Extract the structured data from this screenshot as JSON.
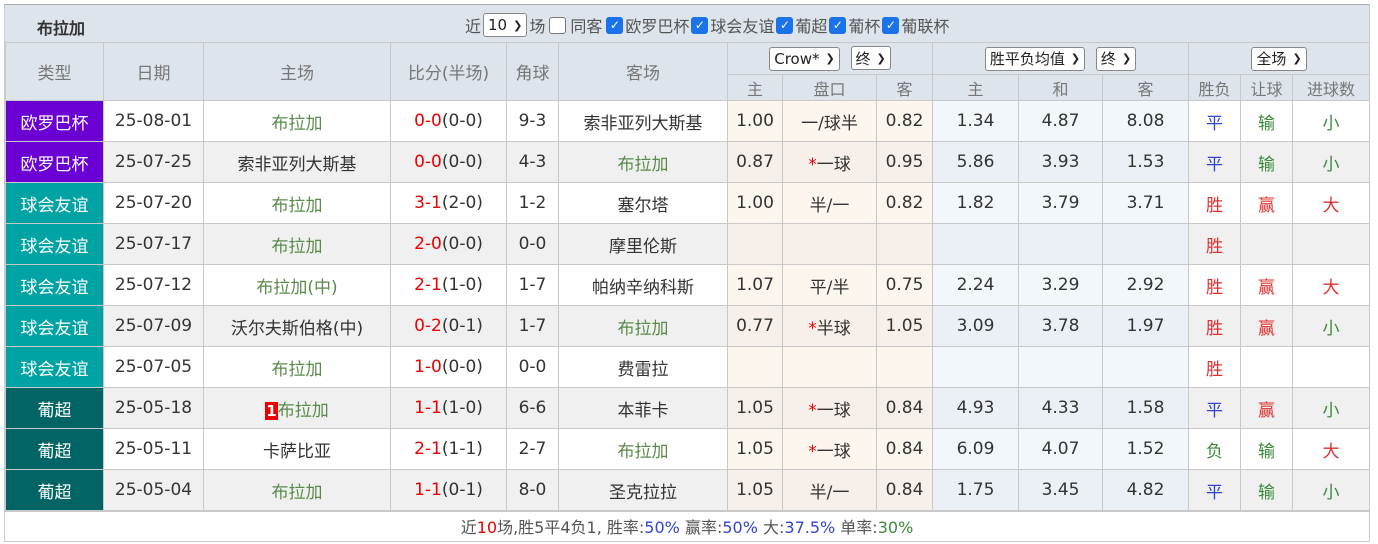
{
  "title": "布拉加",
  "filters": {
    "near_label": "近",
    "count": "10",
    "unit": "场",
    "same_guest": "同客",
    "leagues": [
      "欧罗巴杯",
      "球会友谊",
      "葡超",
      "葡杯",
      "葡联杯"
    ]
  },
  "headers": {
    "type": "类型",
    "date": "日期",
    "home": "主场",
    "score": "比分(半场)",
    "corner": "角球",
    "away": "客场",
    "company": "Crow*",
    "stage1": "终",
    "avg": "胜平负均值",
    "stage2": "终",
    "scope": "全场",
    "sub": [
      "主",
      "盘口",
      "客",
      "主",
      "和",
      "客",
      "胜负",
      "让球",
      "进球数"
    ]
  },
  "colors": {
    "欧罗巴杯": "#6a00d4",
    "球会友谊": "#00a3a3",
    "葡超": "#006464"
  },
  "rows": [
    {
      "type": "欧罗巴杯",
      "date": "25-08-01",
      "home": "布拉加",
      "home_hl": true,
      "score": "0-0",
      "half": "(0-0)",
      "corner": "9-3",
      "away": "索非亚列大斯基",
      "away_hl": false,
      "h": "1.00",
      "hc": "一/球半",
      "star": false,
      "a": "0.82",
      "o1": "1.34",
      "ox": "4.87",
      "o2": "8.08",
      "r": "平",
      "rq": "输",
      "ds": "小"
    },
    {
      "type": "欧罗巴杯",
      "date": "25-07-25",
      "home": "索非亚列大斯基",
      "home_hl": false,
      "score": "0-0",
      "half": "(0-0)",
      "corner": "4-3",
      "away": "布拉加",
      "away_hl": true,
      "h": "0.87",
      "hc": "一球",
      "star": true,
      "a": "0.95",
      "o1": "5.86",
      "ox": "3.93",
      "o2": "1.53",
      "r": "平",
      "rq": "输",
      "ds": "小"
    },
    {
      "type": "球会友谊",
      "date": "25-07-20",
      "home": "布拉加",
      "home_hl": true,
      "score": "3-1",
      "half": "(2-0)",
      "corner": "1-2",
      "away": "塞尔塔",
      "away_hl": false,
      "h": "1.00",
      "hc": "半/一",
      "star": false,
      "a": "0.82",
      "o1": "1.82",
      "ox": "3.79",
      "o2": "3.71",
      "r": "胜",
      "rq": "赢",
      "ds": "大"
    },
    {
      "type": "球会友谊",
      "date": "25-07-17",
      "home": "布拉加",
      "home_hl": true,
      "score": "2-0",
      "half": "(0-0)",
      "corner": "0-0",
      "away": "摩里伦斯",
      "away_hl": false,
      "h": "",
      "hc": "",
      "star": false,
      "a": "",
      "o1": "",
      "ox": "",
      "o2": "",
      "r": "胜",
      "rq": "",
      "ds": ""
    },
    {
      "type": "球会友谊",
      "date": "25-07-12",
      "home": "布拉加(中)",
      "home_hl": true,
      "score": "2-1",
      "half": "(1-0)",
      "corner": "1-7",
      "away": "帕纳辛纳科斯",
      "away_hl": false,
      "h": "1.07",
      "hc": "平/半",
      "star": false,
      "a": "0.75",
      "o1": "2.24",
      "ox": "3.29",
      "o2": "2.92",
      "r": "胜",
      "rq": "赢",
      "ds": "大"
    },
    {
      "type": "球会友谊",
      "date": "25-07-09",
      "home": "沃尔夫斯伯格(中)",
      "home_hl": false,
      "score": "0-2",
      "half": "(0-1)",
      "corner": "1-7",
      "away": "布拉加",
      "away_hl": true,
      "h": "0.77",
      "hc": "半球",
      "star": true,
      "a": "1.05",
      "o1": "3.09",
      "ox": "3.78",
      "o2": "1.97",
      "r": "胜",
      "rq": "赢",
      "ds": "小"
    },
    {
      "type": "球会友谊",
      "date": "25-07-05",
      "home": "布拉加",
      "home_hl": true,
      "score": "1-0",
      "half": "(0-0)",
      "corner": "0-0",
      "away": "费雷拉",
      "away_hl": false,
      "h": "",
      "hc": "",
      "star": false,
      "a": "",
      "o1": "",
      "ox": "",
      "o2": "",
      "r": "胜",
      "rq": "",
      "ds": ""
    },
    {
      "type": "葡超",
      "date": "25-05-18",
      "home": "布拉加",
      "home_hl": true,
      "badge": "1",
      "score": "1-1",
      "half": "(1-0)",
      "corner": "6-6",
      "away": "本菲卡",
      "away_hl": false,
      "h": "1.05",
      "hc": "一球",
      "star": true,
      "a": "0.84",
      "o1": "4.93",
      "ox": "4.33",
      "o2": "1.58",
      "r": "平",
      "rq": "赢",
      "ds": "小"
    },
    {
      "type": "葡超",
      "date": "25-05-11",
      "home": "卡萨比亚",
      "home_hl": false,
      "score": "2-1",
      "half": "(1-1)",
      "corner": "2-7",
      "away": "布拉加",
      "away_hl": true,
      "h": "1.05",
      "hc": "一球",
      "star": true,
      "a": "0.84",
      "o1": "6.09",
      "ox": "4.07",
      "o2": "1.52",
      "r": "负",
      "rq": "输",
      "ds": "大"
    },
    {
      "type": "葡超",
      "date": "25-05-04",
      "home": "布拉加",
      "home_hl": true,
      "score": "1-1",
      "half": "(0-1)",
      "corner": "8-0",
      "away": "圣克拉拉",
      "away_hl": false,
      "h": "1.05",
      "hc": "半/一",
      "star": false,
      "a": "0.84",
      "o1": "1.75",
      "ox": "3.45",
      "o2": "4.82",
      "r": "平",
      "rq": "输",
      "ds": "小"
    }
  ],
  "footer": {
    "p1": "近",
    "n": "10",
    "p2": "场,胜5平4负1, 胜率:",
    "win": "50%",
    "p3": " 赢率:",
    "ying": "50%",
    "p4": " 大:",
    "big": "37.5%",
    "p5": " 单率:",
    "odd": "30%"
  }
}
